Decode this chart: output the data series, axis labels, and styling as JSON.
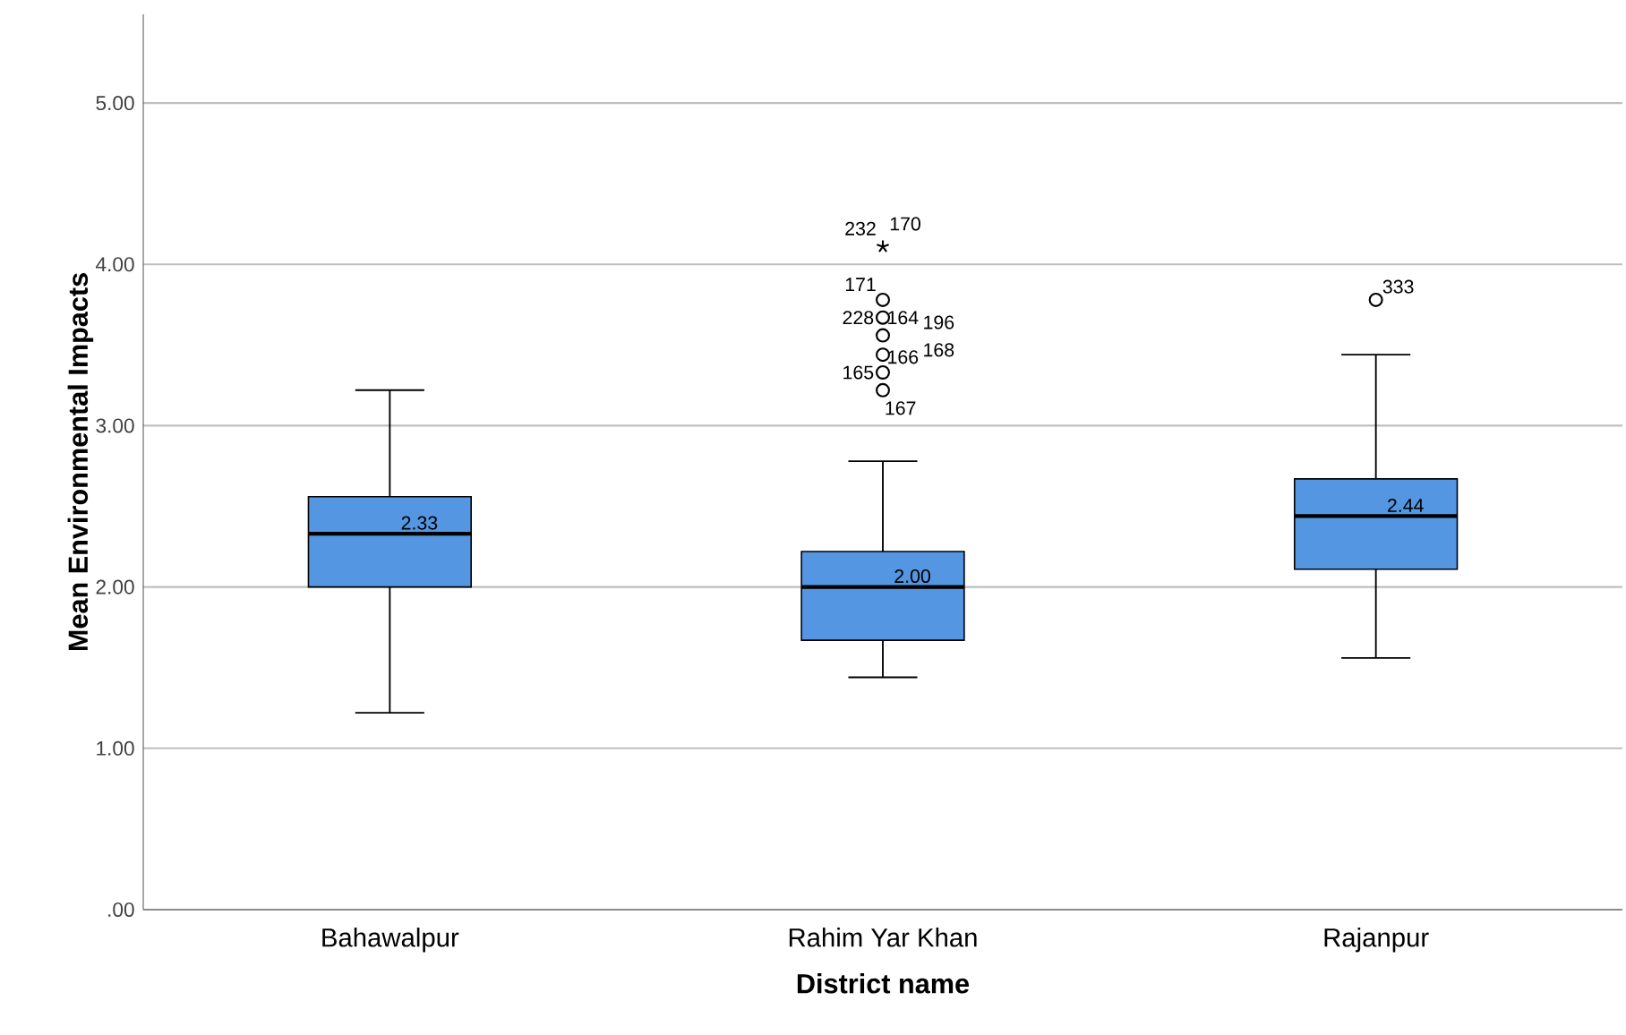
{
  "chart_data": {
    "type": "box",
    "xlabel": "District name",
    "ylabel": "Mean Environmental Impacts",
    "categories": [
      "Bahawalpur",
      "Rahim Yar Khan",
      "Rajanpur"
    ],
    "color": "#5596e2",
    "boxes": [
      {
        "low": 1.22,
        "q1": 2.0,
        "median": 2.33,
        "q3": 2.56,
        "high": 3.22
      },
      {
        "low": 1.44,
        "q1": 1.67,
        "median": 2.0,
        "q3": 2.22,
        "high": 2.78,
        "outliers": [
          4.11,
          3.78,
          3.67,
          3.56,
          3.44,
          3.33,
          3.22
        ]
      },
      {
        "low": 1.56,
        "q1": 2.11,
        "median": 2.44,
        "q3": 2.67,
        "high": 3.44,
        "outliers": [
          3.78
        ]
      }
    ],
    "ylim": [
      0,
      5.55
    ],
    "yticks": [
      {
        "value": 0,
        "label": ".00"
      },
      {
        "value": 1,
        "label": "1.00"
      },
      {
        "value": 2,
        "label": "2.00"
      },
      {
        "value": 3,
        "label": "3.00"
      },
      {
        "value": 4,
        "label": "4.00"
      },
      {
        "value": 5,
        "label": "5.00"
      }
    ],
    "grid": "y",
    "annotations": [
      {
        "text": "2.33",
        "x": "Bahawalpur",
        "y": 2.33
      },
      {
        "text": "2.00",
        "x": "Rahim Yar Khan",
        "y": 2.0
      },
      {
        "text": "2.44",
        "x": "Rajanpur",
        "y": 2.44
      },
      "232",
      "170",
      "171",
      "228",
      "164",
      "196",
      "166",
      "168",
      "165",
      "167",
      "333"
    ]
  }
}
